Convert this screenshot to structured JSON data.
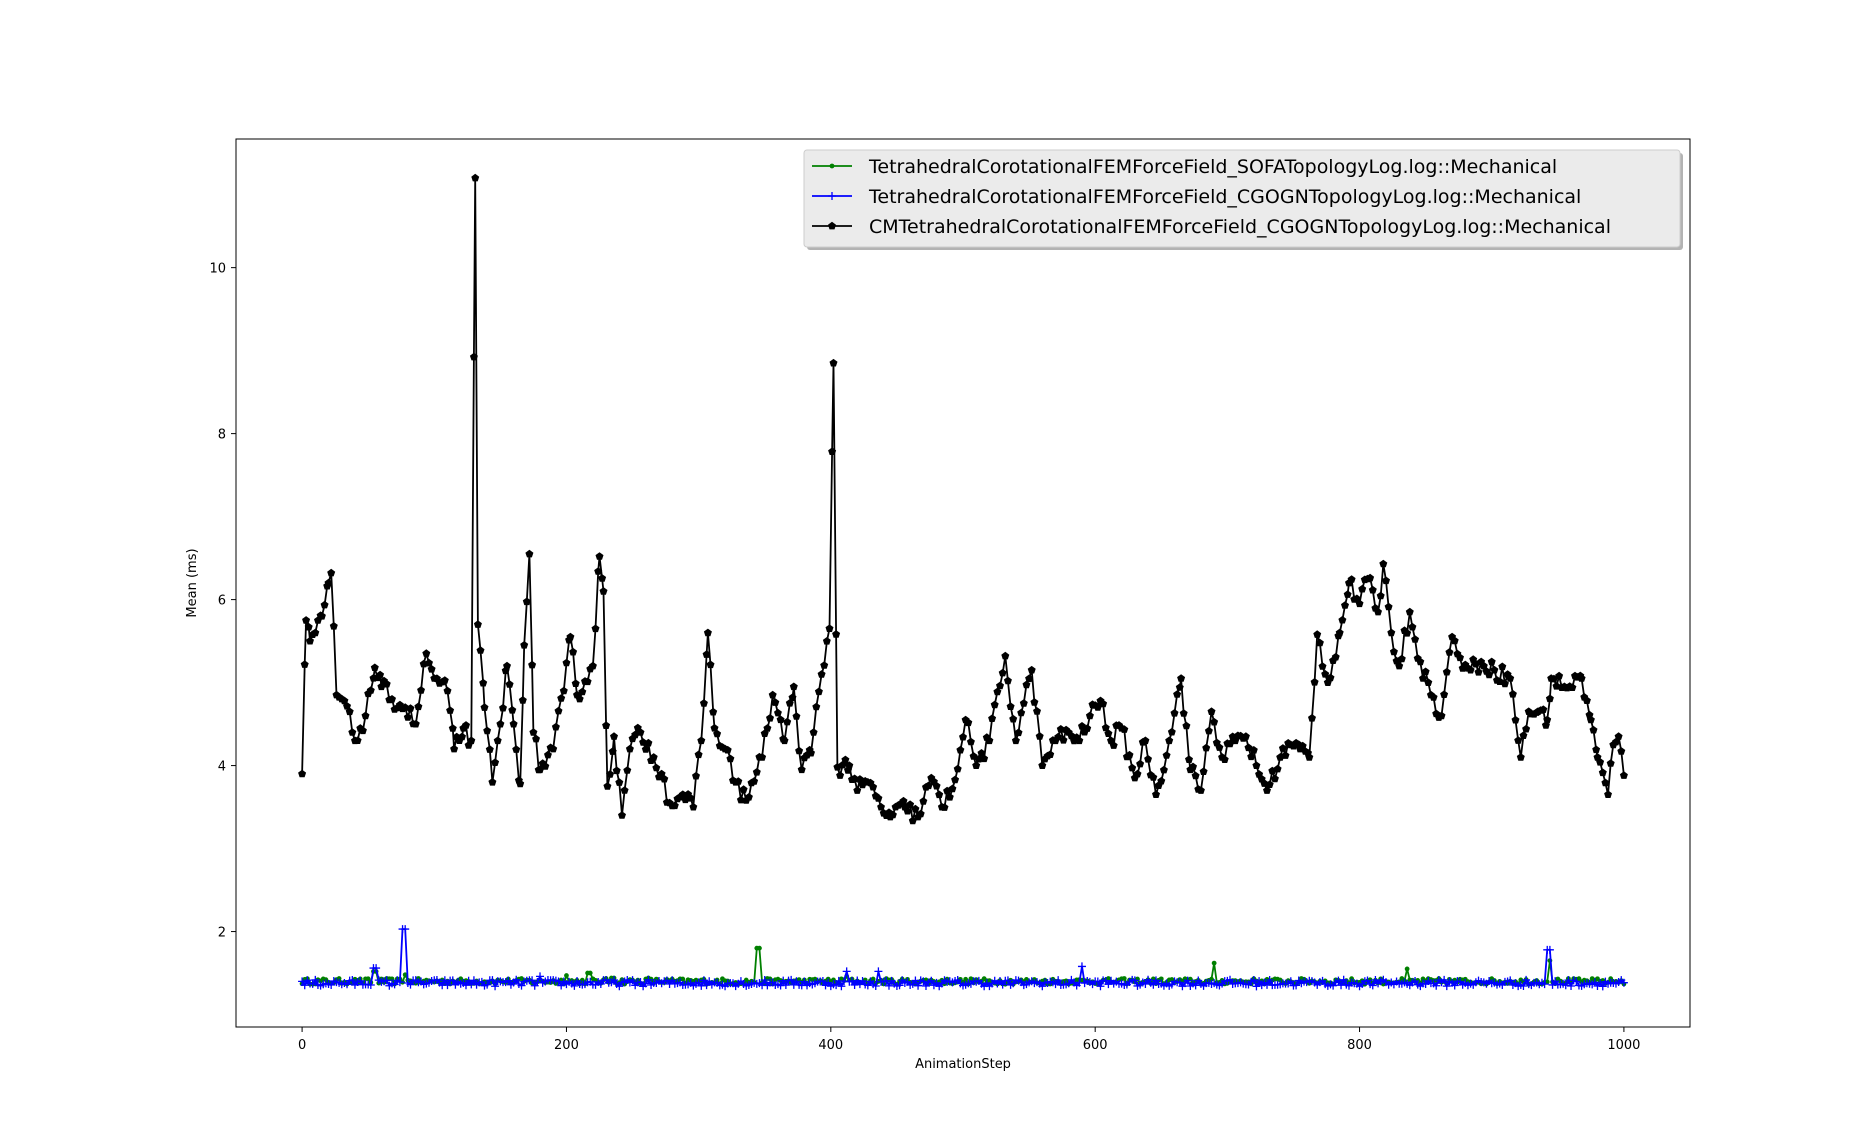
{
  "chart_data": {
    "type": "line",
    "title": "",
    "xlabel": "AnimationStep",
    "ylabel": "Mean (ms)",
    "xlim": [
      -50,
      1050
    ],
    "ylim": [
      0.85,
      11.55
    ],
    "xticks": [
      0,
      200,
      400,
      600,
      800,
      1000
    ],
    "yticks": [
      2,
      4,
      6,
      8,
      10
    ],
    "xtick_labels": [
      "0",
      "200",
      "400",
      "600",
      "800",
      "1000"
    ],
    "ytick_labels": [
      "2",
      "4",
      "6",
      "8",
      "10"
    ],
    "grid": false,
    "legend_position": "top-right",
    "series": [
      {
        "name": "TetrahedralCorotationalFEMForceField_SOFATopologyLog.log::Mechanical",
        "color": "#008000",
        "marker": "point",
        "baseline": 1.4,
        "peaks": [
          [
            55,
            1.52
          ],
          [
            78,
            1.48
          ],
          [
            200,
            1.47
          ],
          [
            217,
            1.5
          ],
          [
            235,
            1.44
          ],
          [
            262,
            1.44
          ],
          [
            345,
            1.8
          ],
          [
            412,
            1.46
          ],
          [
            690,
            1.62
          ],
          [
            836,
            1.55
          ],
          [
            944,
            1.65
          ]
        ]
      },
      {
        "name": "TetrahedralCorotationalFEMForceField_CGOGNTopologyLog.log::Mechanical",
        "color": "#0000ff",
        "marker": "plus",
        "baseline": 1.38,
        "peaks": [
          [
            55,
            1.56
          ],
          [
            77,
            2.03
          ],
          [
            180,
            1.46
          ],
          [
            412,
            1.52
          ],
          [
            436,
            1.52
          ],
          [
            590,
            1.58
          ],
          [
            943,
            1.78
          ]
        ]
      },
      {
        "name": "CMTetrahedralCorotationalFEMForceField_CGOGNTopologyLog.log::Mechanical",
        "color": "#000000",
        "marker": "pentagon",
        "keypoints": [
          [
            0,
            3.9
          ],
          [
            3,
            5.75
          ],
          [
            6,
            5.5
          ],
          [
            10,
            5.6
          ],
          [
            15,
            5.8
          ],
          [
            20,
            6.2
          ],
          [
            22,
            6.32
          ],
          [
            26,
            4.85
          ],
          [
            32,
            4.78
          ],
          [
            40,
            4.3
          ],
          [
            48,
            4.6
          ],
          [
            55,
            5.18
          ],
          [
            60,
            4.95
          ],
          [
            68,
            4.8
          ],
          [
            78,
            4.7
          ],
          [
            86,
            4.5
          ],
          [
            94,
            5.35
          ],
          [
            100,
            5.05
          ],
          [
            110,
            4.9
          ],
          [
            115,
            4.2
          ],
          [
            122,
            4.45
          ],
          [
            128,
            4.3
          ],
          [
            131,
            11.08
          ],
          [
            133,
            5.7
          ],
          [
            138,
            4.7
          ],
          [
            144,
            3.8
          ],
          [
            150,
            4.5
          ],
          [
            155,
            5.2
          ],
          [
            160,
            4.5
          ],
          [
            165,
            3.78
          ],
          [
            168,
            5.45
          ],
          [
            172,
            6.55
          ],
          [
            175,
            4.4
          ],
          [
            180,
            3.95
          ],
          [
            190,
            4.2
          ],
          [
            198,
            4.9
          ],
          [
            203,
            5.55
          ],
          [
            208,
            4.85
          ],
          [
            220,
            5.2
          ],
          [
            225,
            6.52
          ],
          [
            228,
            6.1
          ],
          [
            231,
            3.75
          ],
          [
            236,
            4.35
          ],
          [
            242,
            3.4
          ],
          [
            248,
            4.2
          ],
          [
            256,
            4.4
          ],
          [
            266,
            4.1
          ],
          [
            272,
            3.9
          ],
          [
            278,
            3.55
          ],
          [
            288,
            3.65
          ],
          [
            296,
            3.5
          ],
          [
            302,
            4.3
          ],
          [
            307,
            5.6
          ],
          [
            312,
            4.45
          ],
          [
            320,
            4.2
          ],
          [
            328,
            3.8
          ],
          [
            336,
            3.58
          ],
          [
            348,
            4.1
          ],
          [
            356,
            4.85
          ],
          [
            365,
            4.3
          ],
          [
            372,
            4.95
          ],
          [
            378,
            3.95
          ],
          [
            385,
            4.15
          ],
          [
            393,
            5.1
          ],
          [
            399,
            5.65
          ],
          [
            402,
            8.85
          ],
          [
            405,
            3.98
          ],
          [
            414,
            4.0
          ],
          [
            420,
            3.7
          ],
          [
            428,
            3.8
          ],
          [
            438,
            3.5
          ],
          [
            445,
            3.38
          ],
          [
            456,
            3.5
          ],
          [
            466,
            3.38
          ],
          [
            476,
            3.85
          ],
          [
            484,
            3.5
          ],
          [
            492,
            3.72
          ],
          [
            502,
            4.55
          ],
          [
            510,
            4.0
          ],
          [
            520,
            4.3
          ],
          [
            532,
            5.32
          ],
          [
            540,
            4.3
          ],
          [
            546,
            4.75
          ],
          [
            552,
            5.15
          ],
          [
            560,
            4.0
          ],
          [
            570,
            4.3
          ],
          [
            580,
            4.4
          ],
          [
            588,
            4.3
          ],
          [
            596,
            4.6
          ],
          [
            604,
            4.78
          ],
          [
            612,
            4.3
          ],
          [
            620,
            4.45
          ],
          [
            630,
            3.85
          ],
          [
            638,
            4.3
          ],
          [
            646,
            3.65
          ],
          [
            656,
            4.3
          ],
          [
            665,
            5.05
          ],
          [
            672,
            3.95
          ],
          [
            680,
            3.7
          ],
          [
            688,
            4.65
          ],
          [
            696,
            4.1
          ],
          [
            706,
            4.3
          ],
          [
            714,
            4.35
          ],
          [
            722,
            4.0
          ],
          [
            730,
            3.7
          ],
          [
            740,
            4.1
          ],
          [
            748,
            4.25
          ],
          [
            755,
            4.2
          ],
          [
            762,
            4.1
          ],
          [
            768,
            5.58
          ],
          [
            776,
            5.0
          ],
          [
            785,
            5.6
          ],
          [
            792,
            6.2
          ],
          [
            800,
            5.95
          ],
          [
            806,
            6.25
          ],
          [
            814,
            5.85
          ],
          [
            818,
            6.43
          ],
          [
            824,
            5.6
          ],
          [
            830,
            5.2
          ],
          [
            838,
            5.85
          ],
          [
            846,
            5.25
          ],
          [
            854,
            4.85
          ],
          [
            862,
            4.6
          ],
          [
            870,
            5.55
          ],
          [
            876,
            5.3
          ],
          [
            884,
            5.15
          ],
          [
            892,
            5.25
          ],
          [
            902,
            5.15
          ],
          [
            914,
            5.05
          ],
          [
            922,
            4.1
          ],
          [
            928,
            4.65
          ],
          [
            935,
            4.65
          ],
          [
            942,
            4.55
          ],
          [
            945,
            5.05
          ],
          [
            955,
            4.95
          ],
          [
            968,
            5.05
          ],
          [
            975,
            4.55
          ],
          [
            980,
            4.1
          ],
          [
            988,
            3.65
          ],
          [
            992,
            4.25
          ],
          [
            996,
            4.35
          ],
          [
            1000,
            3.88
          ]
        ]
      }
    ]
  }
}
